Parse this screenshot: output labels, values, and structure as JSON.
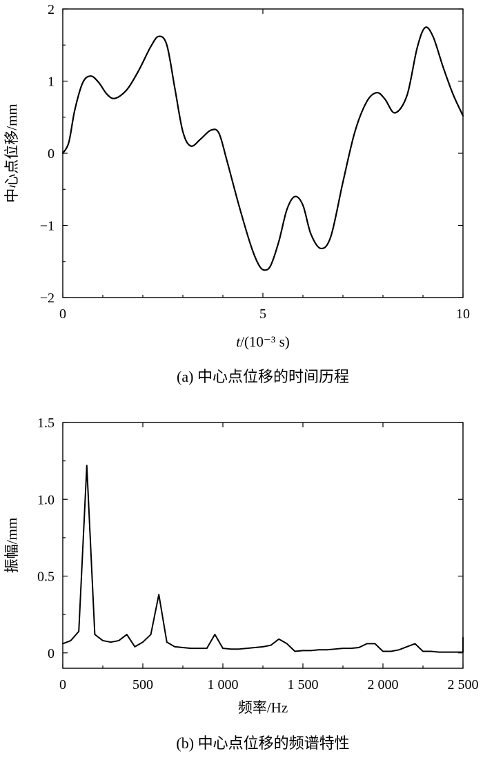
{
  "chart_data": [
    {
      "type": "line",
      "title": "",
      "caption": "(a) 中心点位移的时间历程",
      "xlabel_italic": "t",
      "xlabel_rest": "/(10⁻³ s)",
      "ylabel": "中心点位移/mm",
      "xlim": [
        0,
        10
      ],
      "ylim": [
        -2,
        2
      ],
      "x_ticks": [
        0,
        5,
        10
      ],
      "x_tick_labels": [
        "0",
        "5",
        "10"
      ],
      "y_ticks": [
        2,
        1,
        0,
        -1,
        -2
      ],
      "y_tick_labels": [
        "2",
        "1",
        "0",
        "−1",
        "−2"
      ],
      "grid": false,
      "series": [
        {
          "x": [
            0.0,
            0.15,
            0.3,
            0.5,
            0.7,
            0.9,
            1.1,
            1.3,
            1.6,
            1.9,
            2.2,
            2.4,
            2.6,
            2.8,
            3.0,
            3.2,
            3.45,
            3.7,
            3.9,
            4.1,
            4.4,
            4.7,
            4.9,
            5.05,
            5.2,
            5.4,
            5.6,
            5.8,
            6.0,
            6.2,
            6.45,
            6.7,
            7.0,
            7.3,
            7.6,
            7.85,
            8.05,
            8.3,
            8.6,
            8.85,
            9.05,
            9.25,
            9.5,
            9.75,
            10.0
          ],
          "values": [
            0.0,
            0.15,
            0.6,
            0.98,
            1.07,
            0.98,
            0.82,
            0.76,
            0.88,
            1.15,
            1.48,
            1.62,
            1.5,
            0.9,
            0.3,
            0.1,
            0.2,
            0.32,
            0.28,
            -0.1,
            -0.72,
            -1.28,
            -1.55,
            -1.62,
            -1.55,
            -1.22,
            -0.78,
            -0.6,
            -0.72,
            -1.12,
            -1.32,
            -1.15,
            -0.4,
            0.3,
            0.72,
            0.84,
            0.75,
            0.56,
            0.8,
            1.45,
            1.74,
            1.62,
            1.2,
            0.82,
            0.52
          ]
        }
      ]
    },
    {
      "type": "line",
      "title": "",
      "caption": "(b) 中心点位移的频谱特性",
      "xlabel": "频率/Hz",
      "ylabel": "振幅/mm",
      "xlim": [
        0,
        2500
      ],
      "ylim": [
        -0.1,
        1.5
      ],
      "x_ticks": [
        0,
        500,
        1000,
        1500,
        2000,
        2500
      ],
      "x_tick_labels": [
        "0",
        "500",
        "1 000",
        "1 500",
        "2 000",
        "2 500"
      ],
      "y_ticks": [
        1.5,
        1.0,
        0.5,
        0
      ],
      "y_tick_labels": [
        "1.5",
        "1.0",
        "0.5",
        "0"
      ],
      "grid": false,
      "series": [
        {
          "x": [
            0,
            50,
            100,
            150,
            200,
            250,
            300,
            350,
            400,
            450,
            500,
            550,
            600,
            650,
            700,
            750,
            800,
            850,
            900,
            950,
            1000,
            1050,
            1100,
            1150,
            1200,
            1250,
            1300,
            1350,
            1400,
            1450,
            1500,
            1550,
            1600,
            1650,
            1700,
            1750,
            1800,
            1850,
            1900,
            1950,
            2000,
            2050,
            2100,
            2150,
            2200,
            2250,
            2300,
            2350,
            2400,
            2450,
            2500,
            2500
          ],
          "values": [
            0.06,
            0.08,
            0.14,
            1.22,
            0.12,
            0.08,
            0.07,
            0.08,
            0.12,
            0.04,
            0.07,
            0.12,
            0.38,
            0.07,
            0.04,
            0.035,
            0.03,
            0.03,
            0.03,
            0.12,
            0.03,
            0.025,
            0.025,
            0.03,
            0.035,
            0.04,
            0.05,
            0.09,
            0.06,
            0.01,
            0.015,
            0.015,
            0.02,
            0.02,
            0.025,
            0.03,
            0.03,
            0.035,
            0.06,
            0.06,
            0.01,
            0.01,
            0.02,
            0.04,
            0.06,
            0.01,
            0.01,
            0.005,
            0.005,
            0.005,
            0.005,
            0.1
          ]
        }
      ]
    }
  ]
}
